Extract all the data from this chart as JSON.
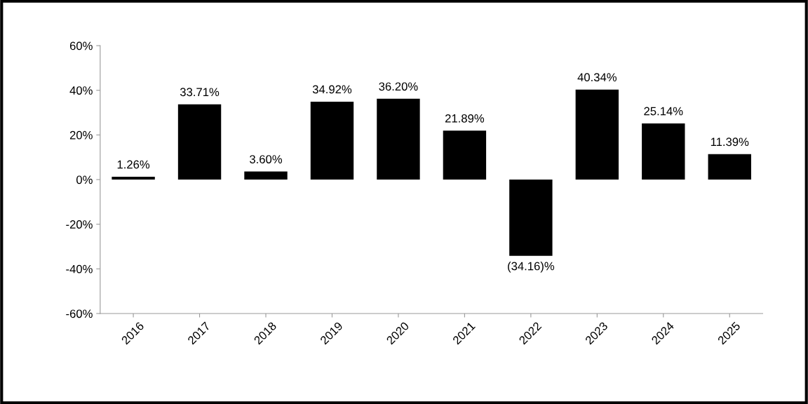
{
  "chart_data": {
    "type": "bar",
    "categories": [
      "2016",
      "2017",
      "2018",
      "2019",
      "2020",
      "2021",
      "2022",
      "2023",
      "2024",
      "2025"
    ],
    "values": [
      1.26,
      33.71,
      3.6,
      34.92,
      36.2,
      21.89,
      -34.16,
      40.34,
      25.14,
      11.39
    ],
    "value_labels": [
      "1.26%",
      "33.71%",
      "3.60%",
      "34.92%",
      "36.20%",
      "21.89%",
      "(34.16)%",
      "40.34%",
      "25.14%",
      "11.39%"
    ],
    "color": "#000000",
    "ylim": [
      -60,
      60
    ],
    "yticks": [
      {
        "value": -60,
        "label": "-60%"
      },
      {
        "value": -40,
        "label": "-40%"
      },
      {
        "value": -20,
        "label": "-20%"
      },
      {
        "value": 0,
        "label": "0%"
      },
      {
        "value": 20,
        "label": "20%"
      },
      {
        "value": 40,
        "label": "40%"
      },
      {
        "value": 60,
        "label": "60%"
      }
    ],
    "grid": false,
    "legend": false
  }
}
